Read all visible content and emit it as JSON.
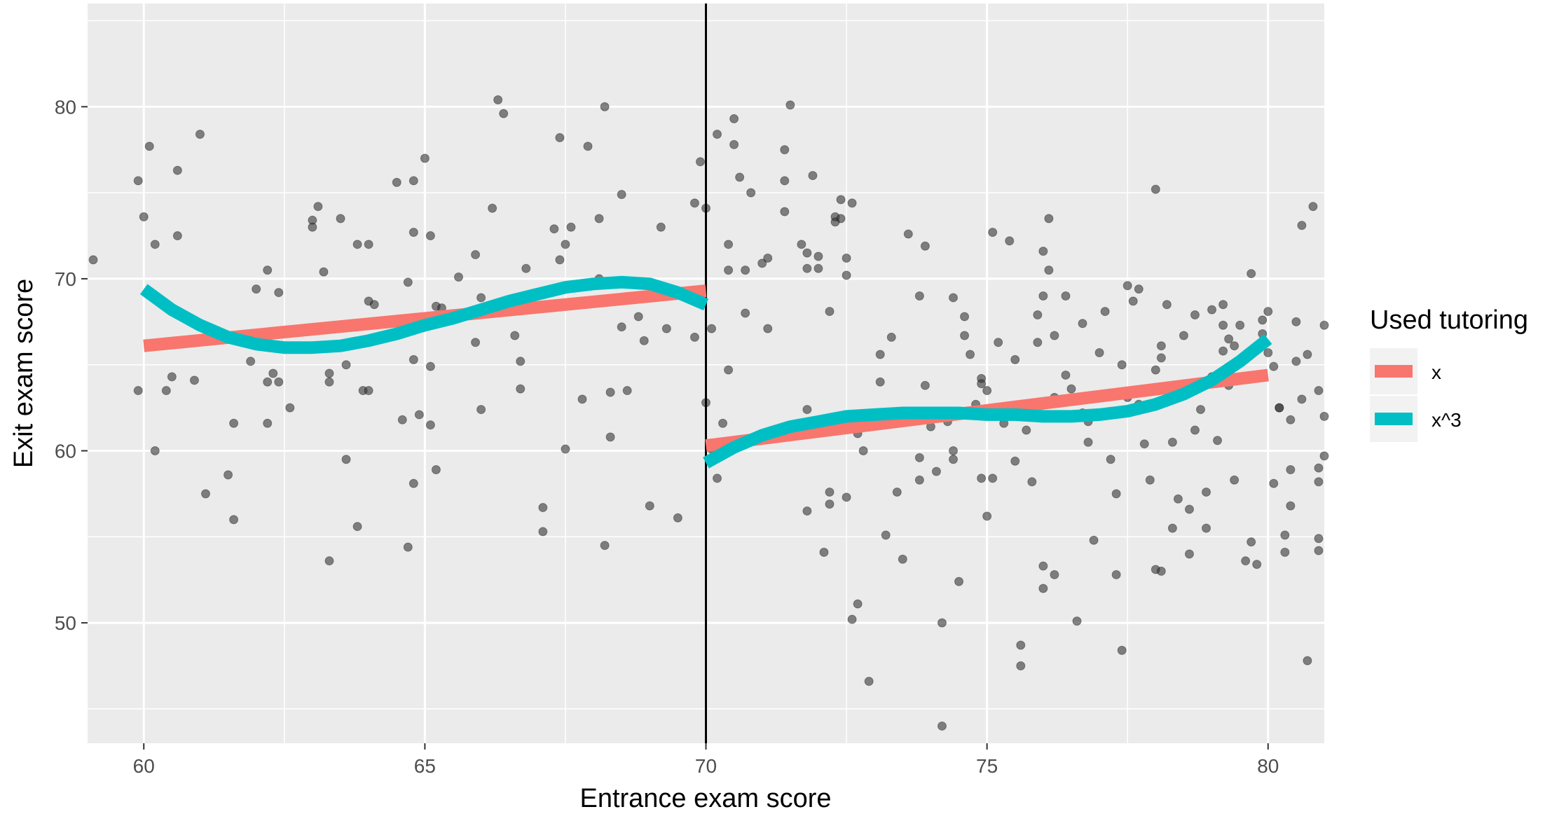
{
  "chart_data": {
    "type": "scatter",
    "title": "",
    "xlabel": "Entrance exam score",
    "ylabel": "Exit exam score",
    "xlim": [
      59.0,
      81.0
    ],
    "ylim": [
      43.0,
      86.0
    ],
    "x_ticks": [
      60,
      65,
      70,
      75,
      80
    ],
    "x_tick_labels": [
      "60",
      "65",
      "70",
      "75",
      "80"
    ],
    "y_ticks": [
      50,
      60,
      70,
      80
    ],
    "y_tick_labels": [
      "50",
      "60",
      "70",
      "80"
    ],
    "grid": true,
    "cutoff_line": {
      "x": 70,
      "color": "#000000"
    },
    "legend": {
      "title": "Used tutoring",
      "placement": "right",
      "entries": [
        {
          "label": "x",
          "color": "#F8766D"
        },
        {
          "label": "x^3",
          "color": "#00BFC4"
        }
      ]
    },
    "points_color": "#333333",
    "points": [
      [
        59.1,
        71.1
      ],
      [
        59.9,
        75.7
      ],
      [
        59.9,
        63.5
      ],
      [
        60.0,
        73.6
      ],
      [
        60.1,
        77.7
      ],
      [
        60.2,
        60.0
      ],
      [
        60.2,
        72.0
      ],
      [
        60.4,
        63.5
      ],
      [
        60.5,
        64.3
      ],
      [
        60.6,
        76.3
      ],
      [
        60.6,
        72.5
      ],
      [
        60.9,
        64.1
      ],
      [
        61.0,
        78.4
      ],
      [
        61.1,
        57.5
      ],
      [
        61.5,
        58.6
      ],
      [
        61.6,
        61.6
      ],
      [
        61.6,
        56.0
      ],
      [
        61.9,
        65.2
      ],
      [
        62.0,
        69.4
      ],
      [
        62.2,
        70.5
      ],
      [
        62.2,
        64.0
      ],
      [
        62.2,
        61.6
      ],
      [
        62.3,
        64.5
      ],
      [
        62.4,
        69.2
      ],
      [
        62.4,
        64.0
      ],
      [
        62.6,
        62.5
      ],
      [
        63.0,
        73.4
      ],
      [
        63.0,
        73.0
      ],
      [
        63.1,
        74.2
      ],
      [
        63.2,
        70.4
      ],
      [
        63.3,
        64.5
      ],
      [
        63.3,
        64.0
      ],
      [
        63.3,
        53.6
      ],
      [
        63.5,
        73.5
      ],
      [
        63.6,
        65.0
      ],
      [
        63.6,
        59.5
      ],
      [
        63.8,
        72.0
      ],
      [
        63.8,
        55.6
      ],
      [
        63.9,
        63.5
      ],
      [
        64.0,
        72.0
      ],
      [
        64.0,
        68.7
      ],
      [
        64.0,
        63.5
      ],
      [
        64.1,
        68.5
      ],
      [
        64.5,
        75.6
      ],
      [
        64.6,
        61.8
      ],
      [
        64.7,
        69.8
      ],
      [
        64.7,
        54.4
      ],
      [
        64.8,
        75.7
      ],
      [
        64.8,
        72.7
      ],
      [
        64.8,
        65.3
      ],
      [
        64.8,
        58.1
      ],
      [
        64.9,
        62.1
      ],
      [
        65.0,
        77.0
      ],
      [
        65.1,
        72.5
      ],
      [
        65.1,
        64.9
      ],
      [
        65.1,
        61.5
      ],
      [
        65.2,
        68.4
      ],
      [
        65.2,
        58.9
      ],
      [
        65.3,
        68.3
      ],
      [
        65.6,
        70.1
      ],
      [
        65.9,
        71.4
      ],
      [
        65.9,
        66.3
      ],
      [
        66.0,
        62.4
      ],
      [
        66.2,
        74.1
      ],
      [
        66.0,
        68.9
      ],
      [
        66.3,
        80.4
      ],
      [
        66.4,
        79.6
      ],
      [
        66.6,
        66.7
      ],
      [
        66.7,
        63.6
      ],
      [
        66.7,
        65.2
      ],
      [
        66.8,
        70.6
      ],
      [
        67.1,
        56.7
      ],
      [
        67.1,
        55.3
      ],
      [
        67.3,
        72.9
      ],
      [
        67.4,
        78.2
      ],
      [
        67.4,
        71.1
      ],
      [
        67.5,
        72.0
      ],
      [
        67.5,
        60.1
      ],
      [
        67.6,
        73.0
      ],
      [
        67.8,
        63.0
      ],
      [
        67.9,
        77.7
      ],
      [
        68.2,
        80.0
      ],
      [
        68.1,
        73.5
      ],
      [
        68.1,
        70.0
      ],
      [
        68.2,
        54.5
      ],
      [
        68.3,
        63.4
      ],
      [
        68.3,
        60.8
      ],
      [
        68.5,
        74.9
      ],
      [
        68.5,
        67.2
      ],
      [
        68.6,
        63.5
      ],
      [
        68.8,
        67.8
      ],
      [
        68.9,
        66.4
      ],
      [
        69.0,
        56.8
      ],
      [
        69.2,
        73.0
      ],
      [
        69.3,
        67.1
      ],
      [
        69.5,
        56.1
      ],
      [
        69.8,
        74.4
      ],
      [
        69.9,
        76.8
      ],
      [
        69.8,
        66.6
      ],
      [
        70.0,
        74.1
      ],
      [
        70.0,
        62.8
      ],
      [
        70.1,
        60.1
      ],
      [
        70.1,
        67.1
      ],
      [
        70.2,
        78.4
      ],
      [
        70.2,
        58.4
      ],
      [
        70.5,
        77.8
      ],
      [
        70.4,
        70.5
      ],
      [
        70.4,
        72.0
      ],
      [
        70.5,
        79.3
      ],
      [
        70.3,
        61.6
      ],
      [
        70.4,
        64.7
      ],
      [
        70.6,
        75.9
      ],
      [
        70.7,
        70.5
      ],
      [
        70.7,
        68.0
      ],
      [
        70.8,
        75.0
      ],
      [
        71.0,
        70.9
      ],
      [
        71.1,
        71.2
      ],
      [
        71.1,
        67.1
      ],
      [
        71.4,
        77.5
      ],
      [
        71.4,
        75.7
      ],
      [
        71.4,
        73.9
      ],
      [
        71.5,
        80.1
      ],
      [
        71.7,
        72.0
      ],
      [
        71.8,
        71.5
      ],
      [
        71.9,
        76.0
      ],
      [
        71.8,
        62.4
      ],
      [
        71.8,
        56.5
      ],
      [
        71.8,
        70.6
      ],
      [
        72.0,
        71.3
      ],
      [
        72.1,
        54.1
      ],
      [
        72.2,
        56.9
      ],
      [
        72.2,
        57.6
      ],
      [
        72.2,
        68.1
      ],
      [
        72.3,
        73.6
      ],
      [
        72.3,
        73.3
      ],
      [
        72.4,
        74.6
      ],
      [
        72.4,
        73.5
      ],
      [
        72.5,
        71.2
      ],
      [
        72.5,
        57.3
      ],
      [
        72.6,
        74.4
      ],
      [
        72.0,
        70.6
      ],
      [
        72.5,
        70.2
      ],
      [
        72.6,
        50.2
      ],
      [
        72.7,
        51.1
      ],
      [
        72.7,
        61.0
      ],
      [
        72.8,
        60.0
      ],
      [
        72.8,
        61.5
      ],
      [
        72.9,
        46.6
      ],
      [
        73.0,
        61.6
      ],
      [
        73.1,
        65.6
      ],
      [
        73.1,
        64.0
      ],
      [
        73.2,
        62.2
      ],
      [
        73.2,
        55.1
      ],
      [
        73.3,
        66.6
      ],
      [
        73.4,
        57.6
      ],
      [
        73.5,
        53.7
      ],
      [
        73.6,
        72.6
      ],
      [
        73.8,
        58.3
      ],
      [
        73.8,
        69.0
      ],
      [
        73.9,
        71.9
      ],
      [
        73.9,
        63.8
      ],
      [
        74.0,
        61.4
      ],
      [
        73.8,
        59.6
      ],
      [
        74.1,
        58.8
      ],
      [
        74.2,
        50.0
      ],
      [
        74.2,
        44.0
      ],
      [
        74.3,
        61.7
      ],
      [
        74.4,
        68.9
      ],
      [
        74.4,
        59.5
      ],
      [
        74.4,
        60.0
      ],
      [
        74.5,
        52.4
      ],
      [
        74.6,
        67.8
      ],
      [
        74.6,
        66.7
      ],
      [
        74.7,
        65.6
      ],
      [
        74.7,
        62.1
      ],
      [
        74.8,
        62.7
      ],
      [
        74.9,
        64.2
      ],
      [
        74.9,
        63.9
      ],
      [
        74.9,
        58.4
      ],
      [
        75.0,
        63.5
      ],
      [
        75.0,
        56.2
      ],
      [
        75.1,
        72.7
      ],
      [
        75.1,
        58.4
      ],
      [
        75.2,
        66.3
      ],
      [
        75.3,
        61.6
      ],
      [
        75.4,
        72.2
      ],
      [
        75.5,
        65.3
      ],
      [
        75.5,
        59.4
      ],
      [
        75.6,
        47.5
      ],
      [
        75.6,
        48.7
      ],
      [
        75.7,
        61.2
      ],
      [
        75.8,
        62.7
      ],
      [
        75.8,
        58.2
      ],
      [
        75.9,
        67.9
      ],
      [
        75.9,
        66.3
      ],
      [
        76.0,
        71.6
      ],
      [
        76.0,
        53.3
      ],
      [
        76.0,
        52.0
      ],
      [
        76.0,
        69.0
      ],
      [
        76.1,
        73.5
      ],
      [
        76.1,
        70.5
      ],
      [
        76.2,
        66.7
      ],
      [
        76.2,
        63.1
      ],
      [
        76.2,
        52.8
      ],
      [
        76.4,
        69.0
      ],
      [
        76.4,
        64.4
      ],
      [
        76.5,
        63.6
      ],
      [
        76.6,
        50.1
      ],
      [
        76.7,
        67.4
      ],
      [
        76.7,
        62.2
      ],
      [
        76.8,
        60.5
      ],
      [
        76.8,
        61.7
      ],
      [
        76.9,
        54.8
      ],
      [
        77.0,
        65.7
      ],
      [
        77.1,
        68.1
      ],
      [
        77.1,
        63.3
      ],
      [
        77.2,
        59.5
      ],
      [
        77.3,
        57.5
      ],
      [
        77.3,
        52.8
      ],
      [
        77.4,
        48.4
      ],
      [
        77.4,
        65.0
      ],
      [
        77.5,
        69.6
      ],
      [
        77.5,
        63.1
      ],
      [
        77.6,
        68.7
      ],
      [
        77.7,
        69.4
      ],
      [
        77.7,
        62.7
      ],
      [
        77.8,
        60.4
      ],
      [
        77.9,
        58.3
      ],
      [
        78.0,
        75.2
      ],
      [
        78.1,
        65.4
      ],
      [
        78.0,
        64.7
      ],
      [
        78.0,
        53.1
      ],
      [
        78.1,
        53.0
      ],
      [
        78.1,
        66.1
      ],
      [
        78.2,
        68.5
      ],
      [
        78.3,
        60.5
      ],
      [
        78.3,
        55.5
      ],
      [
        78.4,
        57.2
      ],
      [
        78.5,
        66.7
      ],
      [
        78.6,
        56.6
      ],
      [
        78.6,
        54.0
      ],
      [
        78.7,
        67.9
      ],
      [
        78.7,
        61.2
      ],
      [
        78.8,
        62.4
      ],
      [
        78.9,
        55.5
      ],
      [
        78.9,
        57.6
      ],
      [
        79.0,
        68.2
      ],
      [
        79.0,
        64.3
      ],
      [
        79.1,
        60.6
      ],
      [
        79.2,
        65.8
      ],
      [
        79.2,
        68.5
      ],
      [
        79.2,
        67.3
      ],
      [
        79.3,
        66.5
      ],
      [
        79.3,
        63.8
      ],
      [
        79.4,
        66.1
      ],
      [
        79.4,
        58.3
      ],
      [
        79.5,
        67.3
      ],
      [
        79.6,
        53.6
      ],
      [
        79.7,
        70.3
      ],
      [
        79.7,
        54.7
      ],
      [
        79.8,
        53.4
      ],
      [
        79.9,
        67.6
      ],
      [
        79.9,
        66.8
      ],
      [
        80.0,
        68.1
      ],
      [
        80.0,
        65.7
      ],
      [
        80.1,
        64.9
      ],
      [
        80.2,
        62.5
      ],
      [
        80.1,
        58.1
      ],
      [
        80.2,
        62.5
      ],
      [
        80.3,
        55.1
      ],
      [
        80.3,
        54.1
      ],
      [
        80.4,
        58.9
      ],
      [
        80.5,
        67.5
      ],
      [
        80.7,
        65.6
      ],
      [
        80.4,
        61.8
      ],
      [
        80.5,
        65.2
      ],
      [
        80.6,
        63.0
      ],
      [
        80.8,
        74.2
      ],
      [
        80.9,
        58.2
      ],
      [
        80.9,
        63.5
      ],
      [
        81.0,
        67.3
      ],
      [
        81.0,
        59.7
      ],
      [
        80.9,
        54.2
      ],
      [
        80.9,
        54.9
      ],
      [
        80.6,
        73.1
      ],
      [
        80.9,
        59.0
      ],
      [
        81.0,
        62.0
      ],
      [
        80.4,
        56.8
      ],
      [
        80.7,
        47.8
      ]
    ],
    "series": [
      {
        "name": "x",
        "color": "#F8766D",
        "segments": [
          {
            "x": [
              60,
              70
            ],
            "y": [
              66.1,
              69.3
            ]
          },
          {
            "x": [
              70,
              80
            ],
            "y": [
              60.3,
              64.4
            ]
          }
        ]
      },
      {
        "name": "x^3",
        "color": "#00BFC4",
        "segments": [
          {
            "x": [
              60,
              60.5,
              61,
              61.5,
              62,
              62.5,
              63,
              63.5,
              64,
              64.5,
              65,
              65.5,
              66,
              66.5,
              67,
              67.5,
              68,
              68.5,
              69,
              69.5,
              70
            ],
            "y": [
              69.4,
              68.2,
              67.3,
              66.6,
              66.2,
              66.0,
              66.0,
              66.1,
              66.4,
              66.8,
              67.3,
              67.7,
              68.2,
              68.7,
              69.1,
              69.5,
              69.7,
              69.8,
              69.7,
              69.2,
              68.5
            ]
          },
          {
            "x": [
              70,
              70.5,
              71,
              71.5,
              72,
              72.5,
              73,
              73.5,
              74,
              74.5,
              75,
              75.5,
              76,
              76.5,
              77,
              77.5,
              78,
              78.5,
              79,
              79.5,
              80
            ],
            "y": [
              59.3,
              60.2,
              60.9,
              61.4,
              61.7,
              62.0,
              62.1,
              62.2,
              62.2,
              62.2,
              62.1,
              62.1,
              62.0,
              62.0,
              62.1,
              62.3,
              62.7,
              63.3,
              64.1,
              65.2,
              66.5
            ]
          }
        ]
      }
    ]
  }
}
